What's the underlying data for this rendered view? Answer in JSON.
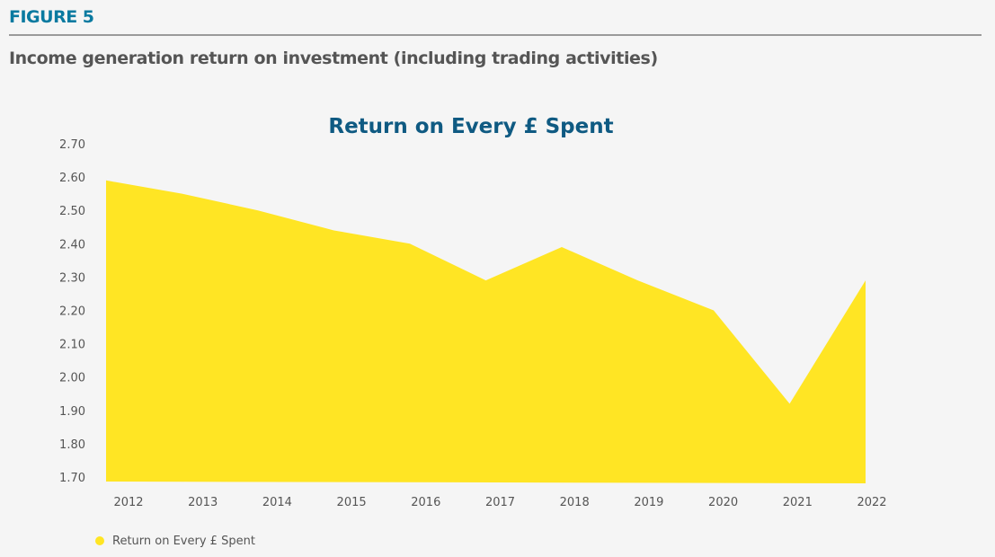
{
  "header": {
    "figure_label": "FIGURE 5",
    "subtitle": "Income generation return on investment (including trading activities)"
  },
  "chart_data": {
    "type": "area",
    "title": "Return on Every £ Spent",
    "xlabel": "",
    "ylabel": "",
    "categories": [
      "2012",
      "2013",
      "2014",
      "2015",
      "2016",
      "2017",
      "2018",
      "2019",
      "2020",
      "2021",
      "2022"
    ],
    "series": [
      {
        "name": "Return on Every £ Spent",
        "color": "#ffe524",
        "values": [
          2.59,
          2.55,
          2.5,
          2.44,
          2.4,
          2.29,
          2.39,
          2.29,
          2.2,
          1.92,
          2.29
        ]
      }
    ],
    "ylim": [
      1.7,
      2.7
    ],
    "yticks": [
      "2.70",
      "2.60",
      "2.50",
      "2.40",
      "2.30",
      "2.20",
      "2.10",
      "2.00",
      "1.90",
      "1.80",
      "1.70"
    ],
    "grid": false,
    "legend_position": "bottom-left"
  }
}
